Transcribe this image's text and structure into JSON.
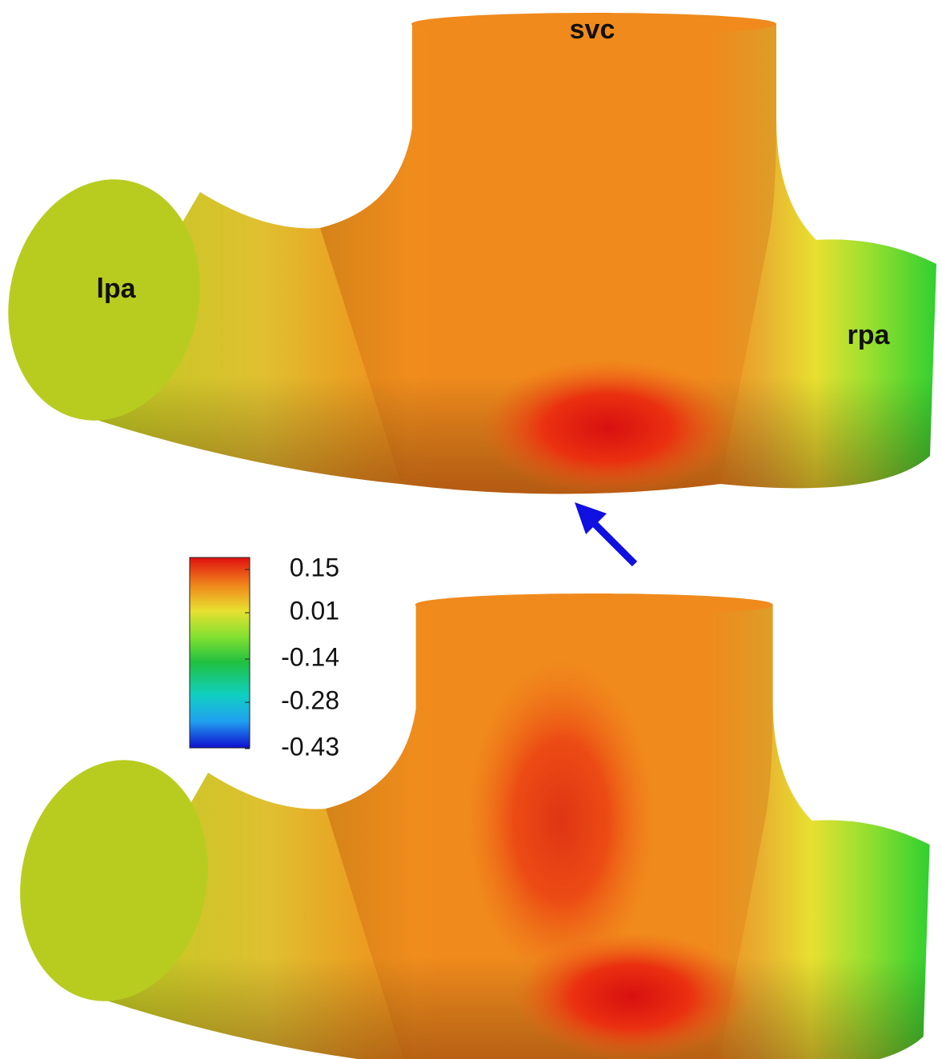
{
  "labels": {
    "svc": "svc",
    "lpa": "lpa",
    "rpa": "rpa"
  },
  "colorbar": {
    "ticks": [
      0.15,
      0.01,
      -0.14,
      -0.28,
      -0.43
    ]
  }
}
